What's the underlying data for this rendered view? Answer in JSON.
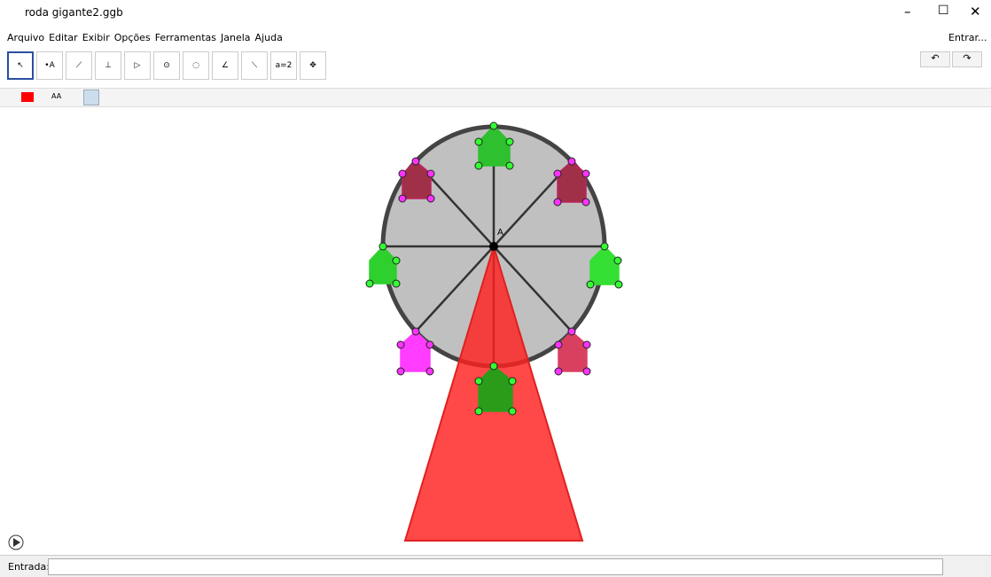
{
  "window": {
    "title": "roda gigante2.ggb"
  },
  "menu": [
    "Arquivo",
    "Editar",
    "Exibir",
    "Opções",
    "Ferramentas",
    "Janela",
    "Ajuda"
  ],
  "login": "Entrar...",
  "toolbar": {
    "slider_tool": "a=2"
  },
  "style_bar": {
    "text_size": "AA"
  },
  "canvas": {
    "point_label": "A"
  },
  "input_bar": {
    "label": "Entrada:"
  }
}
